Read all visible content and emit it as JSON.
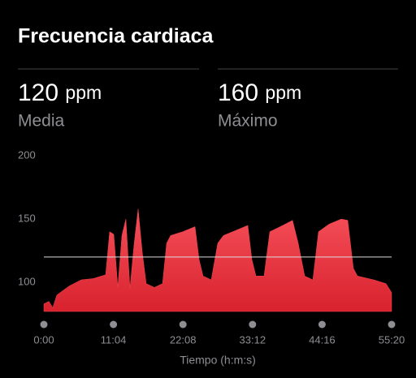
{
  "chart_data": {
    "type": "area",
    "title": "Frecuencia cardiaca",
    "stats": [
      {
        "value": 120,
        "unit": "ppm",
        "label": "Media"
      },
      {
        "value": 160,
        "unit": "ppm",
        "label": "Máximo"
      }
    ],
    "x_label": "Tiempo (h:m:s)",
    "x": [
      0,
      47,
      85,
      124,
      240,
      357,
      473,
      590,
      628,
      667,
      706,
      745,
      783,
      822,
      861,
      900,
      939,
      977,
      1055,
      1133,
      1172,
      1210,
      1326,
      1443,
      1482,
      1520,
      1598,
      1660,
      1714,
      1831,
      1947,
      1986,
      2025,
      2102,
      2157,
      2257,
      2374,
      2428,
      2490,
      2568,
      2622,
      2723,
      2839,
      2901,
      2955,
      2994,
      3149,
      3266,
      3320
    ],
    "values": [
      83,
      85,
      80,
      90,
      97,
      102,
      103,
      106,
      140,
      138,
      96,
      137,
      150,
      95,
      130,
      158,
      124,
      99,
      96,
      99,
      131,
      137,
      140,
      144,
      118,
      105,
      102,
      131,
      137,
      141,
      145,
      118,
      105,
      105,
      140,
      144,
      149,
      131,
      105,
      102,
      140,
      146,
      150,
      149,
      111,
      105,
      102,
      99,
      92
    ],
    "color": "#f2444e",
    "xlim": [
      0,
      3320
    ],
    "xticks": [
      {
        "value": 0,
        "label": "0:00"
      },
      {
        "value": 664,
        "label": "11:04"
      },
      {
        "value": 1328,
        "label": "22:08"
      },
      {
        "value": 1992,
        "label": "33:12"
      },
      {
        "value": 2656,
        "label": "44:16"
      },
      {
        "value": 3320,
        "label": "55:20"
      }
    ],
    "ylim": [
      77,
      200
    ],
    "yticks": [
      100,
      150,
      200
    ],
    "grid": false
  }
}
